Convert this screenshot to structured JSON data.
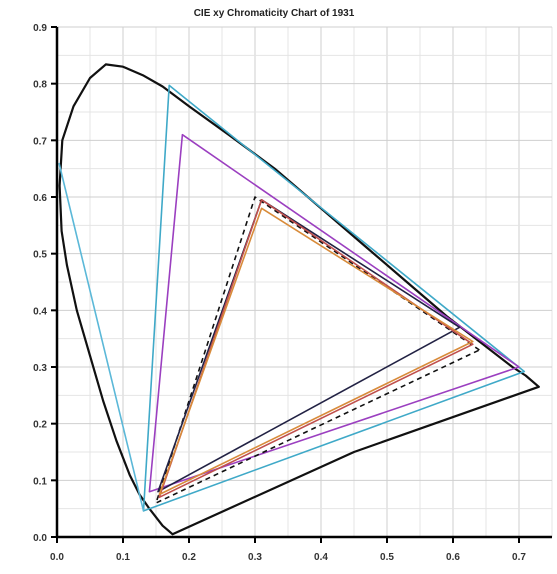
{
  "chart_data": {
    "type": "line",
    "title": "CIE xy Chromaticity Chart of 1931",
    "xlabel": "",
    "ylabel": "",
    "xlim": [
      0.0,
      0.75
    ],
    "ylim": [
      0.0,
      0.9
    ],
    "grid": true,
    "x_ticks": [
      "0.0",
      "0.1",
      "0.2",
      "0.3",
      "0.4",
      "0.5",
      "0.6",
      "0.7"
    ],
    "y_ticks": [
      "0.0",
      "0.1",
      "0.2",
      "0.3",
      "0.4",
      "0.5",
      "0.6",
      "0.7",
      "0.8",
      "0.9"
    ],
    "series": [
      {
        "color": "#111111",
        "style": "solid",
        "closed": true,
        "points": [
          [
            0.175,
            0.005
          ],
          [
            0.17,
            0.01
          ],
          [
            0.16,
            0.02
          ],
          [
            0.15,
            0.035
          ],
          [
            0.14,
            0.05
          ],
          [
            0.125,
            0.075
          ],
          [
            0.11,
            0.11
          ],
          [
            0.09,
            0.17
          ],
          [
            0.07,
            0.24
          ],
          [
            0.05,
            0.32
          ],
          [
            0.03,
            0.4
          ],
          [
            0.015,
            0.48
          ],
          [
            0.007,
            0.54
          ],
          [
            0.004,
            0.62
          ],
          [
            0.008,
            0.7
          ],
          [
            0.025,
            0.76
          ],
          [
            0.05,
            0.81
          ],
          [
            0.074,
            0.834
          ],
          [
            0.1,
            0.83
          ],
          [
            0.13,
            0.815
          ],
          [
            0.16,
            0.795
          ],
          [
            0.2,
            0.76
          ],
          [
            0.26,
            0.71
          ],
          [
            0.33,
            0.65
          ],
          [
            0.4,
            0.58
          ],
          [
            0.47,
            0.51
          ],
          [
            0.53,
            0.45
          ],
          [
            0.59,
            0.39
          ],
          [
            0.64,
            0.345
          ],
          [
            0.69,
            0.3
          ],
          [
            0.71,
            0.285
          ],
          [
            0.73,
            0.265
          ],
          [
            0.45,
            0.15
          ],
          [
            0.175,
            0.005
          ]
        ]
      },
      {
        "color": "#3fa9c8",
        "style": "solid",
        "closed": true,
        "points": [
          [
            0.708,
            0.292
          ],
          [
            0.17,
            0.797
          ],
          [
            0.131,
            0.046
          ]
        ]
      },
      {
        "color": "#5bb8d8",
        "style": "solid",
        "closed": false,
        "points": [
          [
            0.131,
            0.046
          ],
          [
            0.003,
            0.66
          ]
        ]
      },
      {
        "color": "#9b3fc0",
        "style": "solid",
        "closed": true,
        "points": [
          [
            0.7,
            0.3
          ],
          [
            0.19,
            0.71
          ],
          [
            0.14,
            0.08
          ]
        ]
      },
      {
        "color": "#111111",
        "style": "dashed",
        "closed": true,
        "points": [
          [
            0.64,
            0.33
          ],
          [
            0.3,
            0.6
          ],
          [
            0.15,
            0.06
          ]
        ]
      },
      {
        "color": "#222244",
        "style": "solid",
        "closed": true,
        "points": [
          [
            0.61,
            0.37
          ],
          [
            0.31,
            0.595
          ],
          [
            0.153,
            0.08
          ]
        ]
      },
      {
        "color": "#c0504d",
        "style": "solid",
        "closed": true,
        "points": [
          [
            0.63,
            0.34
          ],
          [
            0.31,
            0.595
          ],
          [
            0.155,
            0.07
          ]
        ]
      },
      {
        "color": "#d88b3a",
        "style": "solid",
        "closed": true,
        "points": [
          [
            0.63,
            0.345
          ],
          [
            0.31,
            0.58
          ],
          [
            0.155,
            0.075
          ]
        ]
      }
    ]
  }
}
